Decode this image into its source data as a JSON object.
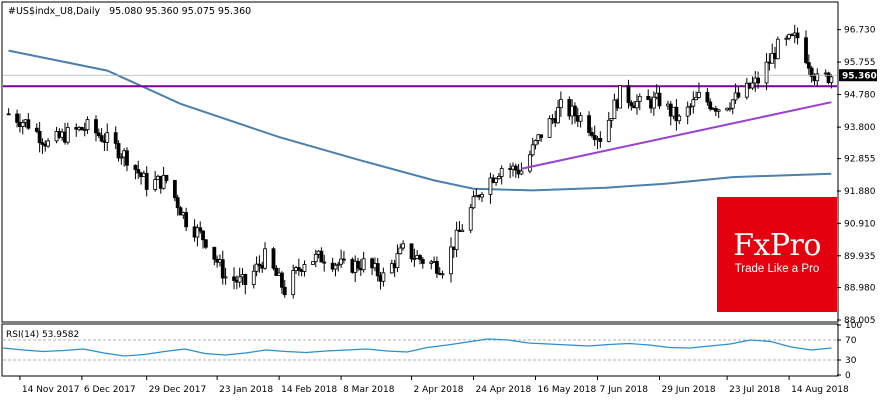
{
  "chart_data": [
    {
      "type": "candlestick",
      "symbol": "#US$indx_U8,Daily",
      "ohlc_header": "95.080 95.360 95.075 95.360",
      "ylim": [
        88.005,
        97.5
      ],
      "y_ticks": [
        96.73,
        95.755,
        94.78,
        93.8,
        92.855,
        91.88,
        90.91,
        89.935,
        88.98,
        88.005
      ],
      "current_price": 95.36,
      "x_labels": [
        "14 Nov 2017",
        "6 Dec 2017",
        "29 Dec 2017",
        "23 Jan 2018",
        "14 Feb 2018",
        "8 Mar 2018",
        "2 Apr 2018",
        "24 Apr 2018",
        "16 May 2018",
        "7 Jun 2018",
        "29 Jun 2018",
        "23 Jul 2018",
        "14 Aug 2018"
      ],
      "close_path": [
        {
          "date": "2017-11-10",
          "close": 94.2
        },
        {
          "date": "2017-11-17",
          "close": 93.9
        },
        {
          "date": "2017-11-24",
          "close": 93.3
        },
        {
          "date": "2017-12-01",
          "close": 93.6
        },
        {
          "date": "2017-12-08",
          "close": 93.8
        },
        {
          "date": "2017-12-15",
          "close": 93.4
        },
        {
          "date": "2017-12-22",
          "close": 92.9
        },
        {
          "date": "2017-12-29",
          "close": 92.1
        },
        {
          "date": "2018-01-05",
          "close": 92.2
        },
        {
          "date": "2018-01-12",
          "close": 91.0
        },
        {
          "date": "2018-01-19",
          "close": 90.4
        },
        {
          "date": "2018-01-26",
          "close": 89.3
        },
        {
          "date": "2018-02-02",
          "close": 89.1
        },
        {
          "date": "2018-02-09",
          "close": 89.9
        },
        {
          "date": "2018-02-16",
          "close": 88.9
        },
        {
          "date": "2018-02-23",
          "close": 89.8
        },
        {
          "date": "2018-03-02",
          "close": 89.9
        },
        {
          "date": "2018-03-09",
          "close": 89.6
        },
        {
          "date": "2018-03-16",
          "close": 89.7
        },
        {
          "date": "2018-03-23",
          "close": 89.3
        },
        {
          "date": "2018-03-30",
          "close": 90.1
        },
        {
          "date": "2018-04-06",
          "close": 89.8
        },
        {
          "date": "2018-04-13",
          "close": 89.6
        },
        {
          "date": "2018-04-20",
          "close": 90.8
        },
        {
          "date": "2018-04-27",
          "close": 92.0
        },
        {
          "date": "2018-05-04",
          "close": 92.6
        },
        {
          "date": "2018-05-11",
          "close": 92.5
        },
        {
          "date": "2018-05-18",
          "close": 93.6
        },
        {
          "date": "2018-05-25",
          "close": 94.4
        },
        {
          "date": "2018-06-01",
          "close": 94.1
        },
        {
          "date": "2018-06-08",
          "close": 93.5
        },
        {
          "date": "2018-06-15",
          "close": 94.8
        },
        {
          "date": "2018-06-22",
          "close": 94.5
        },
        {
          "date": "2018-06-29",
          "close": 94.6
        },
        {
          "date": "2018-07-06",
          "close": 94.0
        },
        {
          "date": "2018-07-13",
          "close": 94.7
        },
        {
          "date": "2018-07-20",
          "close": 94.4
        },
        {
          "date": "2018-07-27",
          "close": 94.7
        },
        {
          "date": "2018-08-03",
          "close": 95.2
        },
        {
          "date": "2018-08-10",
          "close": 96.2
        },
        {
          "date": "2018-08-17",
          "close": 96.5
        },
        {
          "date": "2018-08-24",
          "close": 95.2
        },
        {
          "date": "2018-08-29",
          "close": 95.36
        }
      ],
      "ma_long": [
        {
          "date": "2017-11-10",
          "value": 96.1
        },
        {
          "date": "2017-12-15",
          "value": 95.5
        },
        {
          "date": "2018-01-10",
          "value": 94.5
        },
        {
          "date": "2018-02-14",
          "value": 93.5
        },
        {
          "date": "2018-03-15",
          "value": 92.8
        },
        {
          "date": "2018-04-10",
          "value": 92.2
        },
        {
          "date": "2018-04-24",
          "value": 91.95
        },
        {
          "date": "2018-05-15",
          "value": 91.9
        },
        {
          "date": "2018-06-10",
          "value": 91.98
        },
        {
          "date": "2018-07-01",
          "value": 92.1
        },
        {
          "date": "2018-07-25",
          "value": 92.3
        },
        {
          "date": "2018-08-29",
          "value": 92.4
        }
      ],
      "horizontal_level": 95.03,
      "trendline": [
        {
          "date": "2018-05-11",
          "value": 92.55
        },
        {
          "date": "2018-08-29",
          "value": 94.55
        }
      ]
    },
    {
      "type": "line",
      "indicator": "RSI(14) 53.9582",
      "ylim": [
        0,
        100
      ],
      "y_ticks": [
        100,
        70,
        30,
        0
      ],
      "levels": [
        70,
        30
      ],
      "values": [
        54,
        50,
        47,
        49,
        52,
        44,
        38,
        41,
        47,
        52,
        43,
        40,
        44,
        50,
        47,
        45,
        48,
        50,
        52,
        48,
        46,
        55,
        60,
        66,
        72,
        70,
        64,
        62,
        60,
        58,
        61,
        63,
        60,
        55,
        54,
        58,
        62,
        70,
        67,
        56,
        50,
        54
      ]
    }
  ],
  "logo": {
    "brand": "FxPro",
    "tagline": "Trade Like a Pro"
  },
  "colors": {
    "bull": "#000000",
    "bear": "#000000",
    "ma_long": "#4b7fae",
    "level": "#7a009c",
    "trendline": "#9b3fd0",
    "price_tag": "#000000",
    "rsi": "#2a8fd0",
    "logo": "#e3000f"
  }
}
